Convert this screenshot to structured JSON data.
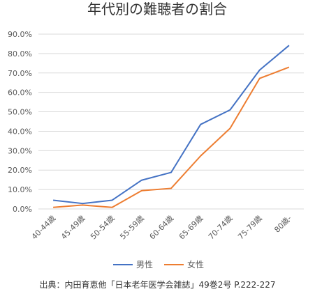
{
  "chart_data": {
    "type": "line",
    "title": "年代別の難聴者の割合",
    "categories": [
      "40-44歳",
      "45-49歳",
      "50-54歳",
      "55-59歳",
      "60-64歳",
      "65-69歳",
      "70-74歳",
      "75-79歳",
      "80歳-"
    ],
    "series": [
      {
        "name": "男性",
        "color": "#4472c4",
        "values": [
          4.5,
          2.8,
          4.5,
          14.8,
          18.8,
          43.5,
          51.0,
          71.5,
          84.2
        ]
      },
      {
        "name": "女性",
        "color": "#ed7d31",
        "values": [
          0.8,
          2.0,
          0.8,
          9.4,
          10.6,
          27.3,
          41.5,
          67.2,
          73.0
        ]
      }
    ],
    "ylim": [
      0,
      90
    ],
    "yticks": [
      "0.0%",
      "10.0%",
      "20.0%",
      "30.0%",
      "40.0%",
      "50.0%",
      "60.0%",
      "70.0%",
      "80.0%",
      "90.0%"
    ],
    "xlabel": "",
    "ylabel": "",
    "grid": true,
    "legend_position": "bottom"
  },
  "source_note": "出典：内田育恵他「日本老年医学会雑誌」49巻2号 P.222-227"
}
